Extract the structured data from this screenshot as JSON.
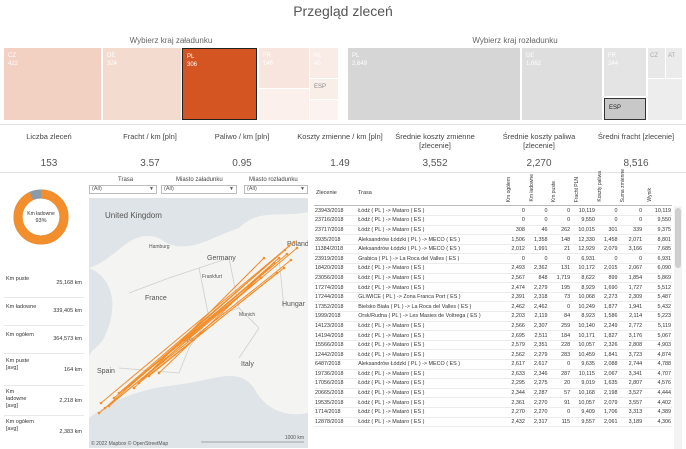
{
  "title": "Przegląd zleceń",
  "loading": {
    "heading": "Wybierz kraj załadunku",
    "cells": [
      {
        "code": "CZ",
        "value": "422"
      },
      {
        "code": "DE",
        "value": "324"
      },
      {
        "code": "PL",
        "value": "306"
      },
      {
        "code": "FR",
        "value": "146"
      },
      {
        "code": "NL",
        "value": "40"
      },
      {
        "code": "ESP",
        "value": ""
      }
    ]
  },
  "unloading": {
    "heading": "Wybierz kraj rozładunku",
    "cells": [
      {
        "code": "PL",
        "value": "2,649"
      },
      {
        "code": "DE",
        "value": "1,062"
      },
      {
        "code": "FR",
        "value": "244"
      },
      {
        "code": "CZ",
        "value": ""
      },
      {
        "code": "AT",
        "value": ""
      },
      {
        "code": "ESP",
        "value": ""
      }
    ]
  },
  "kpis": [
    {
      "label": "Liczba zleceń",
      "value": "153"
    },
    {
      "label": "Fracht / km [pln]",
      "value": "3.57"
    },
    {
      "label": "Paliwo / km [pln]",
      "value": "0.95"
    },
    {
      "label": "Koszty zmienne / km [pln]",
      "value": "1.49"
    },
    {
      "label": "Średnie koszty zmienne [zlecenie]",
      "value": "3,552"
    },
    {
      "label": "Średnie koszty paliwa [zlecenie]",
      "value": "2,270"
    },
    {
      "label": "Średni fracht [zlecenie]",
      "value": "8,516"
    }
  ],
  "donut": {
    "label": "Km ładowne",
    "value": "93%",
    "fraction": 0.93,
    "color": "#f28e2b",
    "rest_color": "#8c9aa8"
  },
  "side": [
    {
      "label": "Km puste",
      "value": "25,168 km"
    },
    {
      "label": "Km ładowne",
      "value": "339,405 km"
    },
    {
      "label": "Km ogółem",
      "value": "364,573 km"
    },
    {
      "label": "Km puste [avg]",
      "value": "164 km"
    },
    {
      "label": "Km ładowne [avg]",
      "value": "2,218 km"
    },
    {
      "label": "Km ogółem [avg]",
      "value": "2,383 km"
    }
  ],
  "filters": [
    {
      "label": "Trasa",
      "value": "(All)"
    },
    {
      "label": "Miasto załadunku",
      "value": "(All)"
    },
    {
      "label": "Miasto rozładunku",
      "value": "(All)"
    }
  ],
  "map": {
    "countries": [
      "United Kingdom",
      "Hamburg",
      "Germany",
      "Poland",
      "Frankfurt",
      "France",
      "Hungar",
      "Italy",
      "Spain",
      "Lyon",
      "Munich"
    ],
    "credit": "© 2022 Mapbox © OpenStreetMap",
    "scale": "1000 km",
    "route_color": "#f28e2b"
  },
  "table": {
    "headers": [
      "Zlecenie",
      "Trasa",
      "Km ogółem",
      "Km ładowne",
      "Km puste",
      "Fracht PLN",
      "Koszty paliwa",
      "Suma zmienne",
      "Wynik"
    ],
    "rows": [
      [
        "23943/2018",
        "Łódź ( PL ) -> Mataro ( ES )",
        "0",
        "0",
        "0",
        "10,119",
        "0",
        "0",
        "10,119"
      ],
      [
        "23716/2018",
        "Łódź ( PL ) -> Mataro ( ES )",
        "0",
        "0",
        "0",
        "9,550",
        "0",
        "0",
        "9,550"
      ],
      [
        "23717/2018",
        "Łódź ( PL ) -> Mataro ( ES )",
        "308",
        "46",
        "262",
        "10,015",
        "301",
        "339",
        "9,375"
      ],
      [
        "3935/2018",
        "Aleksandrów Łódzki ( PL ) -> MECO ( ES )",
        "1,506",
        "1,358",
        "148",
        "12,330",
        "1,458",
        "2,071",
        "8,801"
      ],
      [
        "11384/2018",
        "Aleksandrów Łódzki ( PL ) -> MECO ( ES )",
        "2,012",
        "1,991",
        "21",
        "12,929",
        "2,079",
        "3,166",
        "7,685"
      ],
      [
        "23919/2018",
        "Grabica ( PL ) -> La Roca del Valles ( ES )",
        "0",
        "0",
        "0",
        "6,931",
        "0",
        "0",
        "6,931"
      ],
      [
        "18420/2018",
        "Łódź ( PL ) -> Mataro ( ES )",
        "2,493",
        "2,362",
        "131",
        "10,172",
        "2,015",
        "2,067",
        "6,090"
      ],
      [
        "23056/2018",
        "Łódź ( PL ) -> Mataro ( ES )",
        "2,567",
        "848",
        "1,719",
        "8,622",
        "899",
        "1,854",
        "5,869"
      ],
      [
        "17274/2018",
        "Łódź ( PL ) -> Mataro ( ES )",
        "2,474",
        "2,279",
        "195",
        "8,929",
        "1,690",
        "1,727",
        "5,512"
      ],
      [
        "17244/2018",
        "GLIWICE ( PL ) -> Zona Franca Port ( ES )",
        "2,391",
        "2,318",
        "73",
        "10,068",
        "2,273",
        "2,309",
        "5,487"
      ],
      [
        "17352/2018",
        "Bielsko Biała ( PL ) -> La Roca del Valles ( ES )",
        "2,462",
        "2,462",
        "0",
        "10,249",
        "1,877",
        "1,941",
        "5,432"
      ],
      [
        "1999/2018",
        "Orsk/Rudna ( PL ) -> Les Masies de Voltrega ( ES )",
        "2,203",
        "2,119",
        "84",
        "8,923",
        "1,586",
        "2,114",
        "5,223"
      ],
      [
        "14123/2018",
        "Łódź ( PL ) -> Mataro ( ES )",
        "2,566",
        "2,307",
        "259",
        "10,140",
        "2,249",
        "2,772",
        "5,119"
      ],
      [
        "14194/2018",
        "Łódź ( PL ) -> Mataro ( ES )",
        "2,695",
        "2,511",
        "184",
        "10,171",
        "1,827",
        "3,176",
        "5,067"
      ],
      [
        "15566/2018",
        "Łódź ( PL ) -> Mataro ( ES )",
        "2,579",
        "2,351",
        "228",
        "10,057",
        "2,326",
        "2,808",
        "4,903"
      ],
      [
        "12442/2018",
        "Łódź ( PL ) -> Mataro ( ES )",
        "2,562",
        "2,279",
        "283",
        "10,459",
        "1,841",
        "3,723",
        "4,874"
      ],
      [
        "6487/2018",
        "Aleksandrów Łódzki ( PL ) -> MECO ( ES )",
        "2,617",
        "2,617",
        "0",
        "9,635",
        "2,088",
        "2,744",
        "4,788"
      ],
      [
        "19736/2018",
        "Łódź ( PL ) -> Mataro ( ES )",
        "2,633",
        "2,346",
        "287",
        "10,115",
        "2,067",
        "3,341",
        "4,707"
      ],
      [
        "17056/2018",
        "Łódź ( PL ) -> Mataro ( ES )",
        "2,295",
        "2,275",
        "20",
        "9,019",
        "1,635",
        "2,807",
        "4,576"
      ],
      [
        "20665/2018",
        "Łódź ( PL ) -> Mataro ( ES )",
        "2,344",
        "2,287",
        "57",
        "10,168",
        "2,198",
        "3,527",
        "4,444"
      ],
      [
        "19535/2018",
        "Łódź ( PL ) -> Mataro ( ES )",
        "2,361",
        "2,270",
        "91",
        "10,057",
        "2,079",
        "3,557",
        "4,402"
      ],
      [
        "1714/2018",
        "Łódź ( PL ) -> Mataró ( ES )",
        "2,270",
        "2,270",
        "0",
        "9,409",
        "1,706",
        "3,313",
        "4,389"
      ],
      [
        "12878/2018",
        "Łódź ( PL ) -> Mataro ( ES )",
        "2,432",
        "2,317",
        "115",
        "9,557",
        "2,061",
        "3,189",
        "4,306"
      ]
    ]
  }
}
